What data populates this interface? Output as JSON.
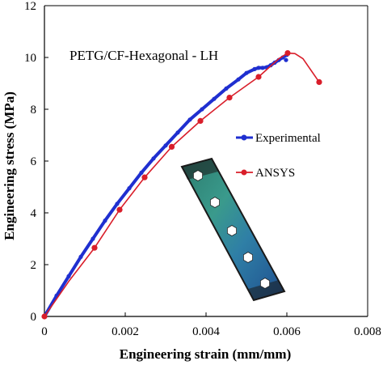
{
  "chart_data": {
    "type": "line",
    "title": "",
    "annotation": "PETG/CF-Hexagonal - LH",
    "xlabel": "Engineering strain (mm/mm)",
    "ylabel": "Engineering stress (MPa)",
    "xlim": [
      0,
      0.008
    ],
    "ylim": [
      0,
      12
    ],
    "xticks": [
      0,
      0.002,
      0.004,
      0.006,
      0.008
    ],
    "xtick_labels": [
      "0",
      "0.002",
      "0.004",
      "0.006",
      "0.008"
    ],
    "yticks": [
      0,
      2,
      4,
      6,
      8,
      10,
      12
    ],
    "ytick_labels": [
      "0",
      "2",
      "4",
      "6",
      "8",
      "10",
      "12"
    ],
    "grid": false,
    "legend_position": "right",
    "series": [
      {
        "name": "Experimental",
        "color": "#1f2fd0",
        "marker": "circle",
        "x": [
          0,
          0.0003,
          0.0006,
          0.0009,
          0.0012,
          0.0015,
          0.0018,
          0.0021,
          0.0024,
          0.0027,
          0.003,
          0.0033,
          0.0036,
          0.0039,
          0.0042,
          0.0045,
          0.0048,
          0.005,
          0.0052,
          0.0053,
          0.0054,
          0.0055,
          0.0056,
          0.0057,
          0.0058,
          0.0059,
          0.006,
          0.00598
        ],
        "y": [
          0,
          0.8,
          1.55,
          2.3,
          3.0,
          3.7,
          4.35,
          4.95,
          5.55,
          6.1,
          6.6,
          7.1,
          7.6,
          8.0,
          8.4,
          8.8,
          9.15,
          9.4,
          9.55,
          9.6,
          9.6,
          9.62,
          9.7,
          9.8,
          9.9,
          10.0,
          10.1,
          9.9
        ]
      },
      {
        "name": "ANSYS",
        "color": "#d91e2a",
        "marker": "circle",
        "x": [
          0,
          0.00124,
          0.00186,
          0.00248,
          0.00315,
          0.00386,
          0.00458,
          0.0053,
          0.00602,
          0.0068
        ],
        "y": [
          0,
          2.65,
          4.12,
          5.37,
          6.55,
          7.55,
          8.45,
          9.25,
          10.17,
          9.05
        ],
        "line_x": [
          0,
          0.0006,
          0.00124,
          0.00186,
          0.00248,
          0.00315,
          0.00386,
          0.00458,
          0.0053,
          0.0058,
          0.00602,
          0.0062,
          0.0064,
          0.0066,
          0.0068
        ],
        "line_y": [
          0,
          1.35,
          2.65,
          4.12,
          5.37,
          6.55,
          7.55,
          8.45,
          9.25,
          9.95,
          10.17,
          10.15,
          9.95,
          9.5,
          9.05
        ]
      }
    ]
  }
}
